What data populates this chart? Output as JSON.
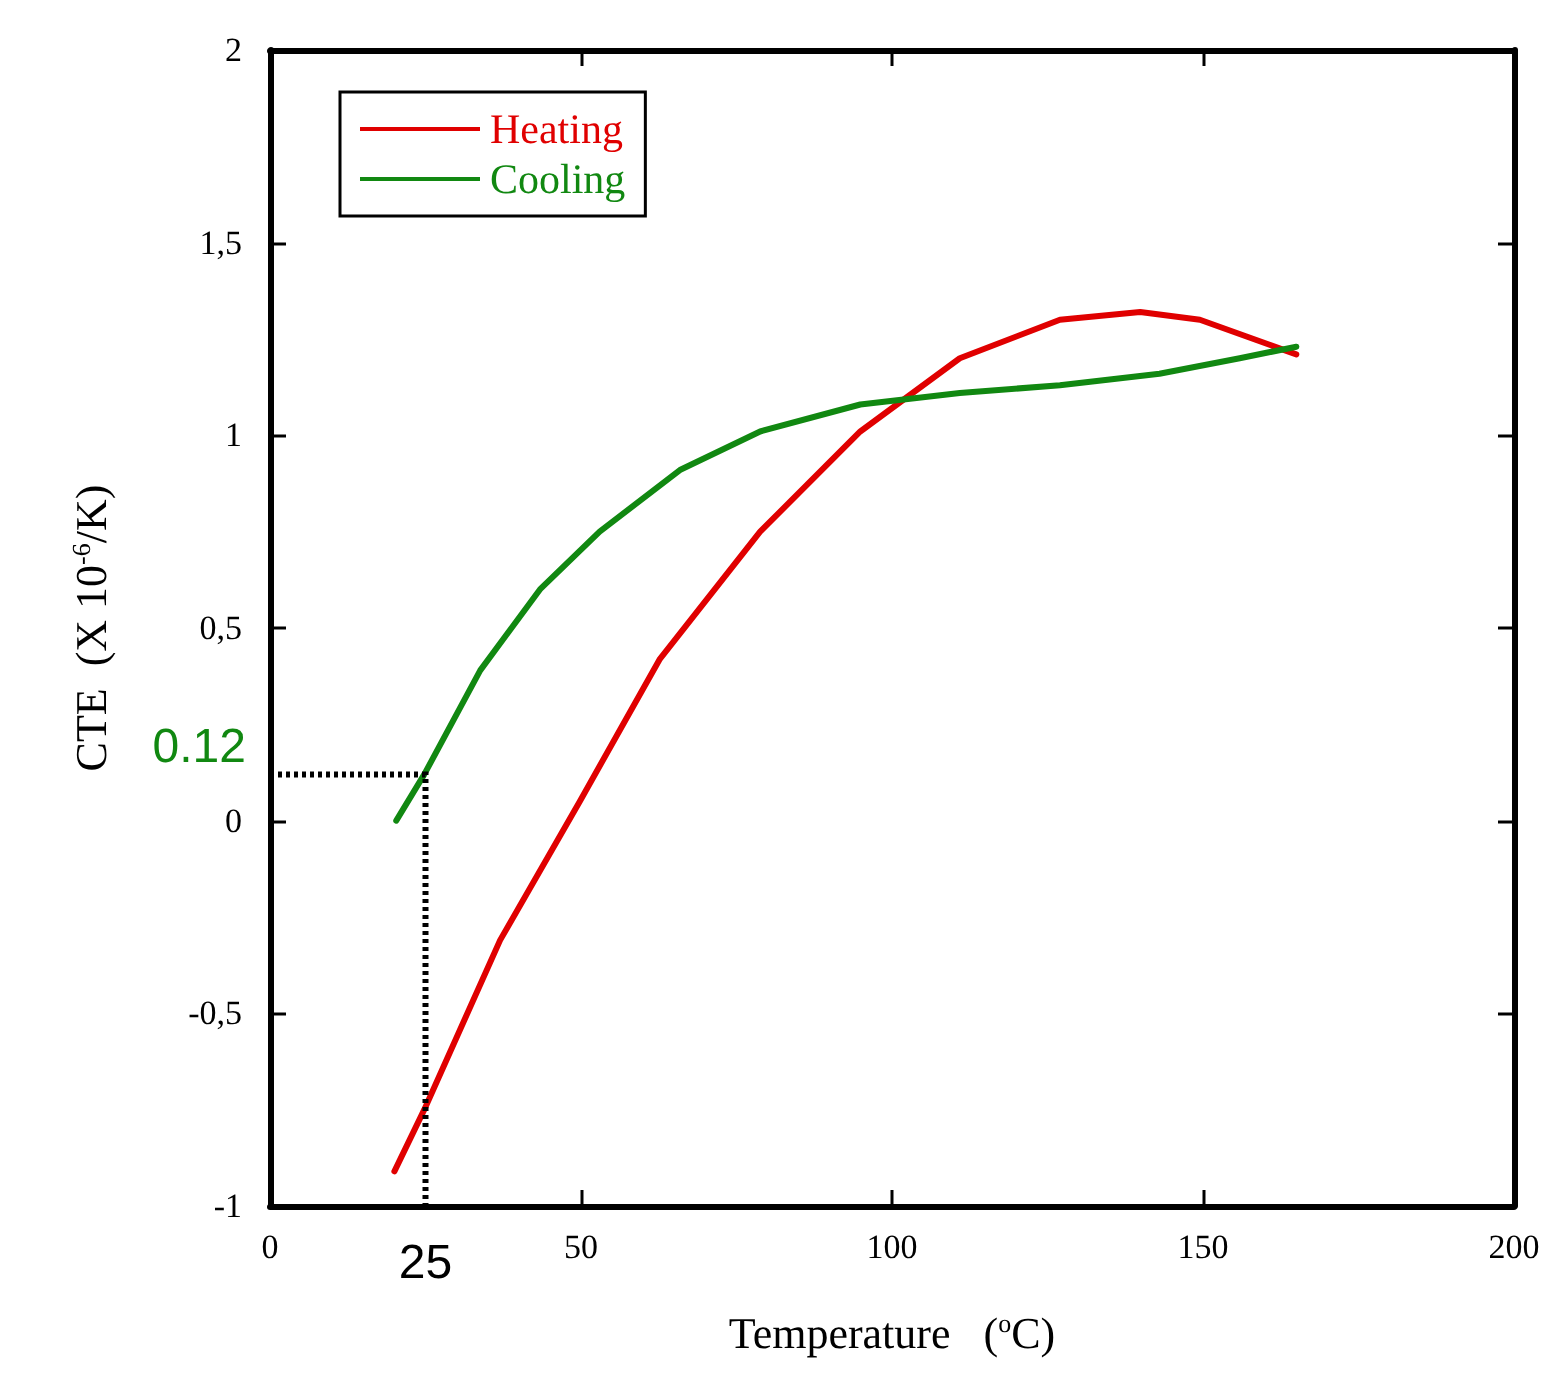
{
  "chart_data": {
    "type": "line",
    "xlabel": "Temperature   ($^{o}$C)",
    "ylabel": "CTE  (X 10$^{-6}$/K)",
    "xlim": [
      0,
      200
    ],
    "xticks": [
      0,
      50,
      100,
      150,
      200
    ],
    "ylim": [
      -1,
      2
    ],
    "yticks": [
      {
        "value": -1,
        "label": "-1"
      },
      {
        "value": -0.5,
        "label": "-0,5"
      },
      0,
      {
        "value": 0.5,
        "label": "0,5"
      },
      1,
      {
        "value": 1.5,
        "label": "1,5"
      },
      2
    ],
    "grid": false,
    "legend": "top left",
    "marker": "none",
    "line_style": "solid",
    "series": [
      {
        "name": "Heating",
        "color": "#e00000",
        "x": [
          20,
          24.8,
          37,
          49.8,
          62.7,
          78.8,
          94.9,
          110.9,
          127,
          139.9,
          149.5,
          165
        ],
        "values": [
          -0.91,
          -0.75,
          -0.31,
          0.05,
          0.42,
          0.75,
          1.01,
          1.2,
          1.3,
          1.32,
          1.3,
          1.21
        ]
      },
      {
        "name": "Cooling",
        "color": "#118811",
        "x": [
          20.3,
          24.8,
          33.8,
          43.4,
          53,
          65.9,
          78.8,
          94.9,
          110.9,
          127,
          143,
          155.9,
          165
        ],
        "values": [
          0,
          0.12,
          0.39,
          0.6,
          0.75,
          0.91,
          1.01,
          1.08,
          1.11,
          1.13,
          1.16,
          1.2,
          1.23
        ]
      }
    ],
    "annotations": [
      "25",
      "0.12"
    ]
  }
}
